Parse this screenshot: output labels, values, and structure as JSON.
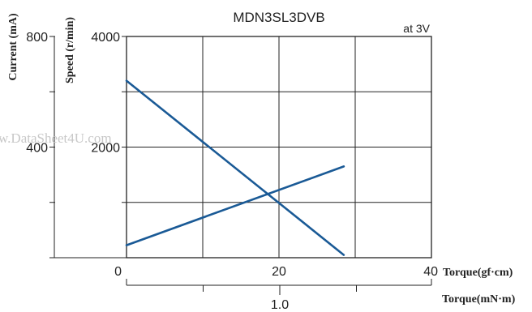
{
  "chart_data": {
    "type": "line",
    "title": "MDN3SL3DVB",
    "condition": "at 3V",
    "watermark": "w.DataSheet4U.com",
    "y_left_outer": {
      "label": "Current (mA)",
      "ylim": [
        0,
        800
      ],
      "ticks": [
        {
          "value": 0,
          "label": ""
        },
        {
          "value": 200,
          "label": ""
        },
        {
          "value": 400,
          "label": "400"
        },
        {
          "value": 600,
          "label": ""
        },
        {
          "value": 800,
          "label": "800"
        }
      ]
    },
    "y_left_inner": {
      "label": "Speed (r/min)",
      "ylim": [
        0,
        4000
      ],
      "ticks": [
        {
          "value": 0,
          "label": ""
        },
        {
          "value": 1000,
          "label": ""
        },
        {
          "value": 2000,
          "label": "2000"
        },
        {
          "value": 3000,
          "label": ""
        },
        {
          "value": 4000,
          "label": "4000"
        }
      ]
    },
    "x_primary": {
      "label": "Torque(gf·cm)",
      "xlim": [
        0,
        40
      ],
      "ticks": [
        {
          "value": 0,
          "label": "0"
        },
        {
          "value": 10,
          "label": ""
        },
        {
          "value": 20,
          "label": "20"
        },
        {
          "value": 30,
          "label": ""
        },
        {
          "value": 40,
          "label": "40"
        }
      ]
    },
    "x_secondary": {
      "label": "Torque(mN·m)",
      "ticks": [
        {
          "value": 1.0,
          "label": "1.0"
        }
      ],
      "minor_ticks": [
        0.5,
        1.5
      ]
    },
    "grid": true,
    "series": [
      {
        "x": [
          0,
          28.5
        ],
        "y_axis": "speed",
        "values": [
          3200,
          50
        ],
        "color": "#1a5a96"
      },
      {
        "x": [
          0,
          28.5
        ],
        "y_axis": "current",
        "values": [
          45,
          330
        ],
        "color": "#1a5a96"
      }
    ]
  }
}
